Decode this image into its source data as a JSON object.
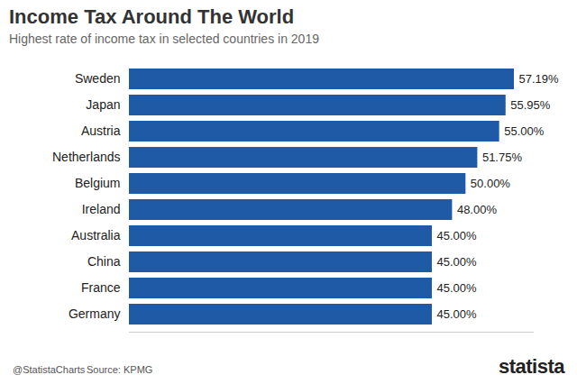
{
  "chart_data": {
    "type": "bar",
    "title": "Income Tax Around The World",
    "subtitle": "Highest rate of income tax in selected countries in 2019",
    "categories": [
      "Sweden",
      "Japan",
      "Austria",
      "Netherlands",
      "Belgium",
      "Ireland",
      "Australia",
      "China",
      "France",
      "Germany"
    ],
    "values": [
      57.19,
      55.95,
      55,
      51.75,
      50,
      48,
      45,
      45,
      45,
      45
    ],
    "value_labels": [
      "57.19%",
      "55.95%",
      "55.00%",
      "51.75%",
      "50.00%",
      "48.00%",
      "45.00%",
      "45.00%",
      "45.00%",
      "45.00%"
    ],
    "color": "#1f5aa6",
    "orientation": "horizontal",
    "data_labels": true,
    "tick_labels": "y",
    "grid": false,
    "xlim": [
      0,
      60
    ],
    "xticks": [],
    "credit": "@StatistaCharts",
    "source": "Source: KPMG",
    "brand": "statista"
  }
}
